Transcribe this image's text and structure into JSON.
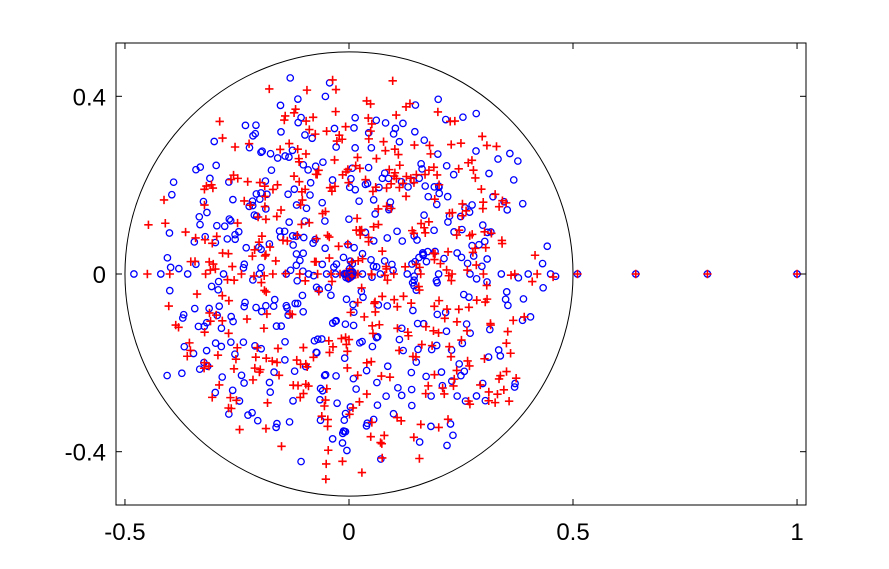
{
  "chart_data": {
    "type": "scatter",
    "title": "",
    "xlabel": "",
    "ylabel": "",
    "xlim": [
      -0.52,
      1.02
    ],
    "ylim": [
      -0.52,
      0.52
    ],
    "grid": false,
    "legend": "none",
    "xticks": [
      -0.5,
      0,
      0.5,
      1
    ],
    "xtick_labels": [
      "-0.5",
      "0",
      "0.5",
      "1"
    ],
    "yticks": [
      -0.4,
      0,
      0.4
    ],
    "ytick_labels": [
      "-0.4",
      "0",
      "0.4"
    ],
    "reference_circle": {
      "center": [
        0,
        0
      ],
      "radius": 0.5,
      "color": "#000000"
    },
    "real_axis_points": [
      {
        "x": 0.51,
        "y": 0
      },
      {
        "x": 0.64,
        "y": 0
      },
      {
        "x": 0.8,
        "y": 0
      },
      {
        "x": 1.0,
        "y": 0
      }
    ],
    "series": [
      {
        "marker": "o",
        "color": "#0000ff",
        "approx_count": 420,
        "distribution": "disk of radius 0.5, denser near center"
      },
      {
        "marker": "+",
        "color": "#ff0000",
        "approx_count": 420,
        "distribution": "disk of radius 0.5, denser near center"
      }
    ]
  }
}
